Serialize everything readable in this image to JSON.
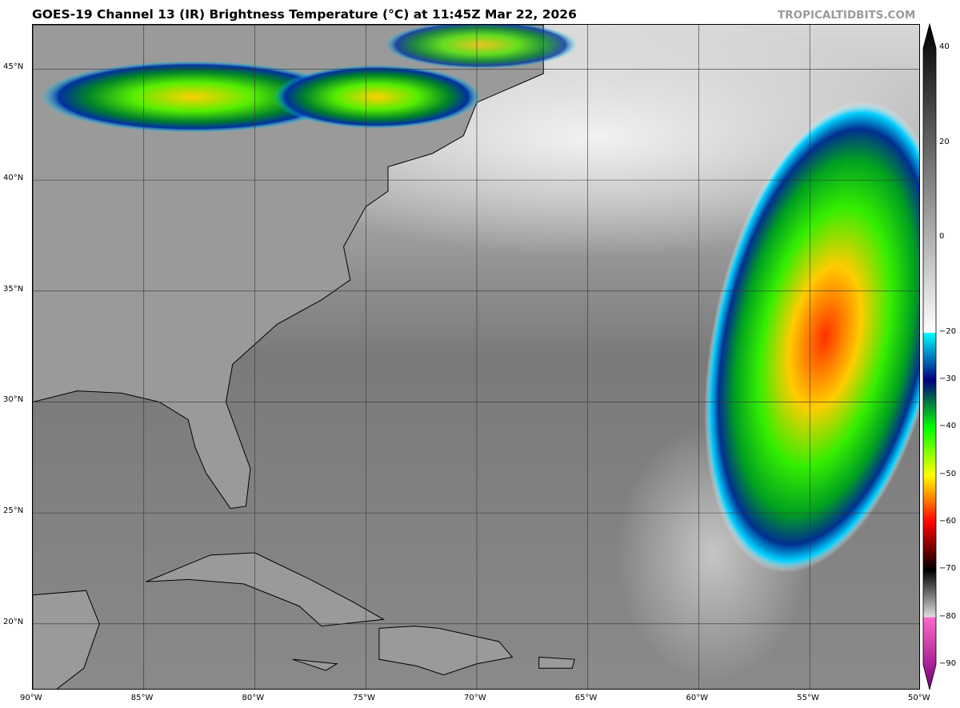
{
  "title": "GOES-19 Channel 13 (IR) Brightness Temperature (°C) at 11:45Z Mar 22, 2026",
  "brand": "TROPICALTIDBITS.COM",
  "map": {
    "lon_range": [
      -90,
      -50
    ],
    "lat_range": [
      17,
      47
    ],
    "gridlines": true,
    "lon_ticks": [
      {
        "value": -90,
        "label": "90°W"
      },
      {
        "value": -85,
        "label": "85°W"
      },
      {
        "value": -80,
        "label": "80°W"
      },
      {
        "value": -75,
        "label": "75°W"
      },
      {
        "value": -70,
        "label": "70°W"
      },
      {
        "value": -65,
        "label": "65°W"
      },
      {
        "value": -60,
        "label": "60°W"
      },
      {
        "value": -55,
        "label": "55°W"
      },
      {
        "value": -50,
        "label": "50°W"
      }
    ],
    "lat_ticks": [
      {
        "value": 45,
        "label": "45°N"
      },
      {
        "value": 40,
        "label": "40°N"
      },
      {
        "value": 35,
        "label": "35°N"
      },
      {
        "value": 30,
        "label": "30°N"
      },
      {
        "value": 25,
        "label": "25°N"
      },
      {
        "value": 20,
        "label": "20°N"
      }
    ]
  },
  "colorbar": {
    "range": [
      -90,
      40
    ],
    "ticks": [
      {
        "value": 40,
        "label": "40"
      },
      {
        "value": 20,
        "label": "20"
      },
      {
        "value": 0,
        "label": "0"
      },
      {
        "value": -20,
        "label": "−20"
      },
      {
        "value": -30,
        "label": "−30"
      },
      {
        "value": -40,
        "label": "−40"
      },
      {
        "value": -50,
        "label": "−50"
      },
      {
        "value": -60,
        "label": "−60"
      },
      {
        "value": -70,
        "label": "−70"
      },
      {
        "value": -80,
        "label": "−80"
      },
      {
        "value": -90,
        "label": "−90"
      }
    ],
    "stops": [
      {
        "value": 45,
        "color": "#000000"
      },
      {
        "value": -20,
        "color": "#ffffff"
      },
      {
        "value": -20.01,
        "color": "#00ffff"
      },
      {
        "value": -30,
        "color": "#000080"
      },
      {
        "value": -40,
        "color": "#00ff00"
      },
      {
        "value": -50,
        "color": "#ffff00"
      },
      {
        "value": -60,
        "color": "#ff0000"
      },
      {
        "value": -70,
        "color": "#000000"
      },
      {
        "value": -80,
        "color": "#e0e0e0"
      },
      {
        "value": -80.01,
        "color": "#ff69c8"
      },
      {
        "value": -95,
        "color": "#7a007a"
      }
    ]
  }
}
